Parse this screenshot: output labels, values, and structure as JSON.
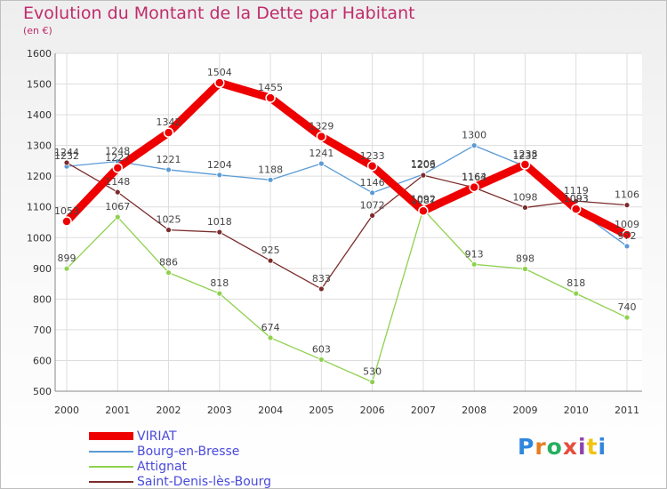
{
  "title": "Evolution du Montant de la Dette par Habitant",
  "subtitle": "(en €)",
  "logo": {
    "letters": [
      {
        "ch": "P",
        "color": "#2e86de"
      },
      {
        "ch": "r",
        "color": "#e67e22"
      },
      {
        "ch": "o",
        "color": "#27ae60"
      },
      {
        "ch": "x",
        "color": "#e74c3c"
      },
      {
        "ch": "i",
        "color": "#8e44ad"
      },
      {
        "ch": "t",
        "color": "#f1c40f"
      },
      {
        "ch": "i",
        "color": "#2e86de"
      }
    ]
  },
  "chart_data": {
    "type": "line",
    "x": [
      "2000",
      "2001",
      "2002",
      "2003",
      "2004",
      "2005",
      "2006",
      "2007",
      "2008",
      "2009",
      "2010",
      "2011"
    ],
    "ylim": [
      500,
      1600
    ],
    "yticks": [
      500,
      600,
      700,
      800,
      900,
      1000,
      1100,
      1200,
      1300,
      1400,
      1500,
      1600
    ],
    "grid": true,
    "legend_position": "bottom-left",
    "series": [
      {
        "name": "VIRIAT",
        "color": "#ee0000",
        "values": [
          1053,
          1227,
          1342,
          1504,
          1455,
          1329,
          1233,
          1087,
          1164,
          1238,
          1093,
          1009
        ]
      },
      {
        "name": "Bourg-en-Bresse",
        "color": "#5b9bd5",
        "values": [
          1232,
          1248,
          1221,
          1204,
          1188,
          1241,
          1146,
          1206,
          1300,
          1232,
          1093,
          972
        ]
      },
      {
        "name": "Attignat",
        "color": "#8fd14f",
        "values": [
          899,
          1067,
          886,
          818,
          674,
          603,
          530,
          1092,
          913,
          898,
          818,
          740
        ]
      },
      {
        "name": "Saint-Denis-lès-Bourg",
        "color": "#7b2b2b",
        "values": [
          1244,
          1148,
          1025,
          1018,
          925,
          833,
          1072,
          1203,
          1163,
          1098,
          1119,
          1106
        ]
      }
    ]
  }
}
